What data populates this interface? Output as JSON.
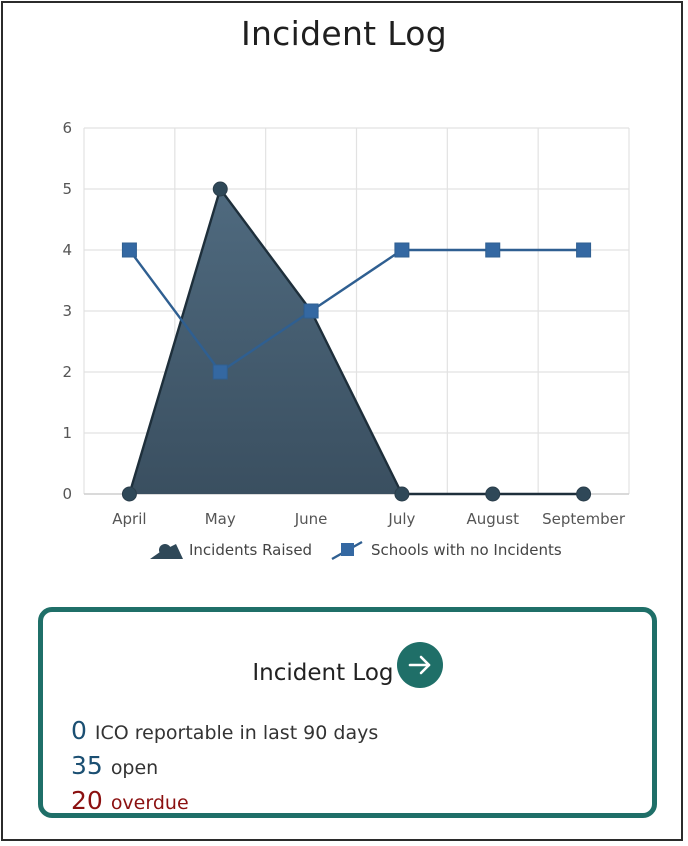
{
  "page": {
    "title": "Incident Log"
  },
  "chart_data": {
    "type": "area",
    "categories": [
      "April",
      "May",
      "June",
      "July",
      "August",
      "September"
    ],
    "series": [
      {
        "name": "Incidents Raised",
        "type": "area",
        "values": [
          0,
          5,
          3,
          0,
          0,
          0
        ],
        "color": "#2f4858"
      },
      {
        "name": "Schools with no Incidents",
        "type": "line",
        "values": [
          4,
          2,
          3,
          4,
          4,
          4
        ],
        "color": "#2f5f91"
      }
    ],
    "ylim": [
      0,
      6
    ],
    "yticks": [
      0,
      1,
      2,
      3,
      4,
      5,
      6
    ],
    "grid": true,
    "legend": "bottom"
  },
  "card": {
    "title": "Incident Log",
    "arrow_icon": "arrow-right-icon",
    "stats": [
      {
        "value": "0",
        "label": "ICO reportable in last 90 days",
        "color": "#1b4f72"
      },
      {
        "value": "35",
        "label": "open",
        "color": "#1b4f72"
      },
      {
        "value": "20",
        "label": "overdue",
        "color": "#8b1010"
      }
    ]
  }
}
